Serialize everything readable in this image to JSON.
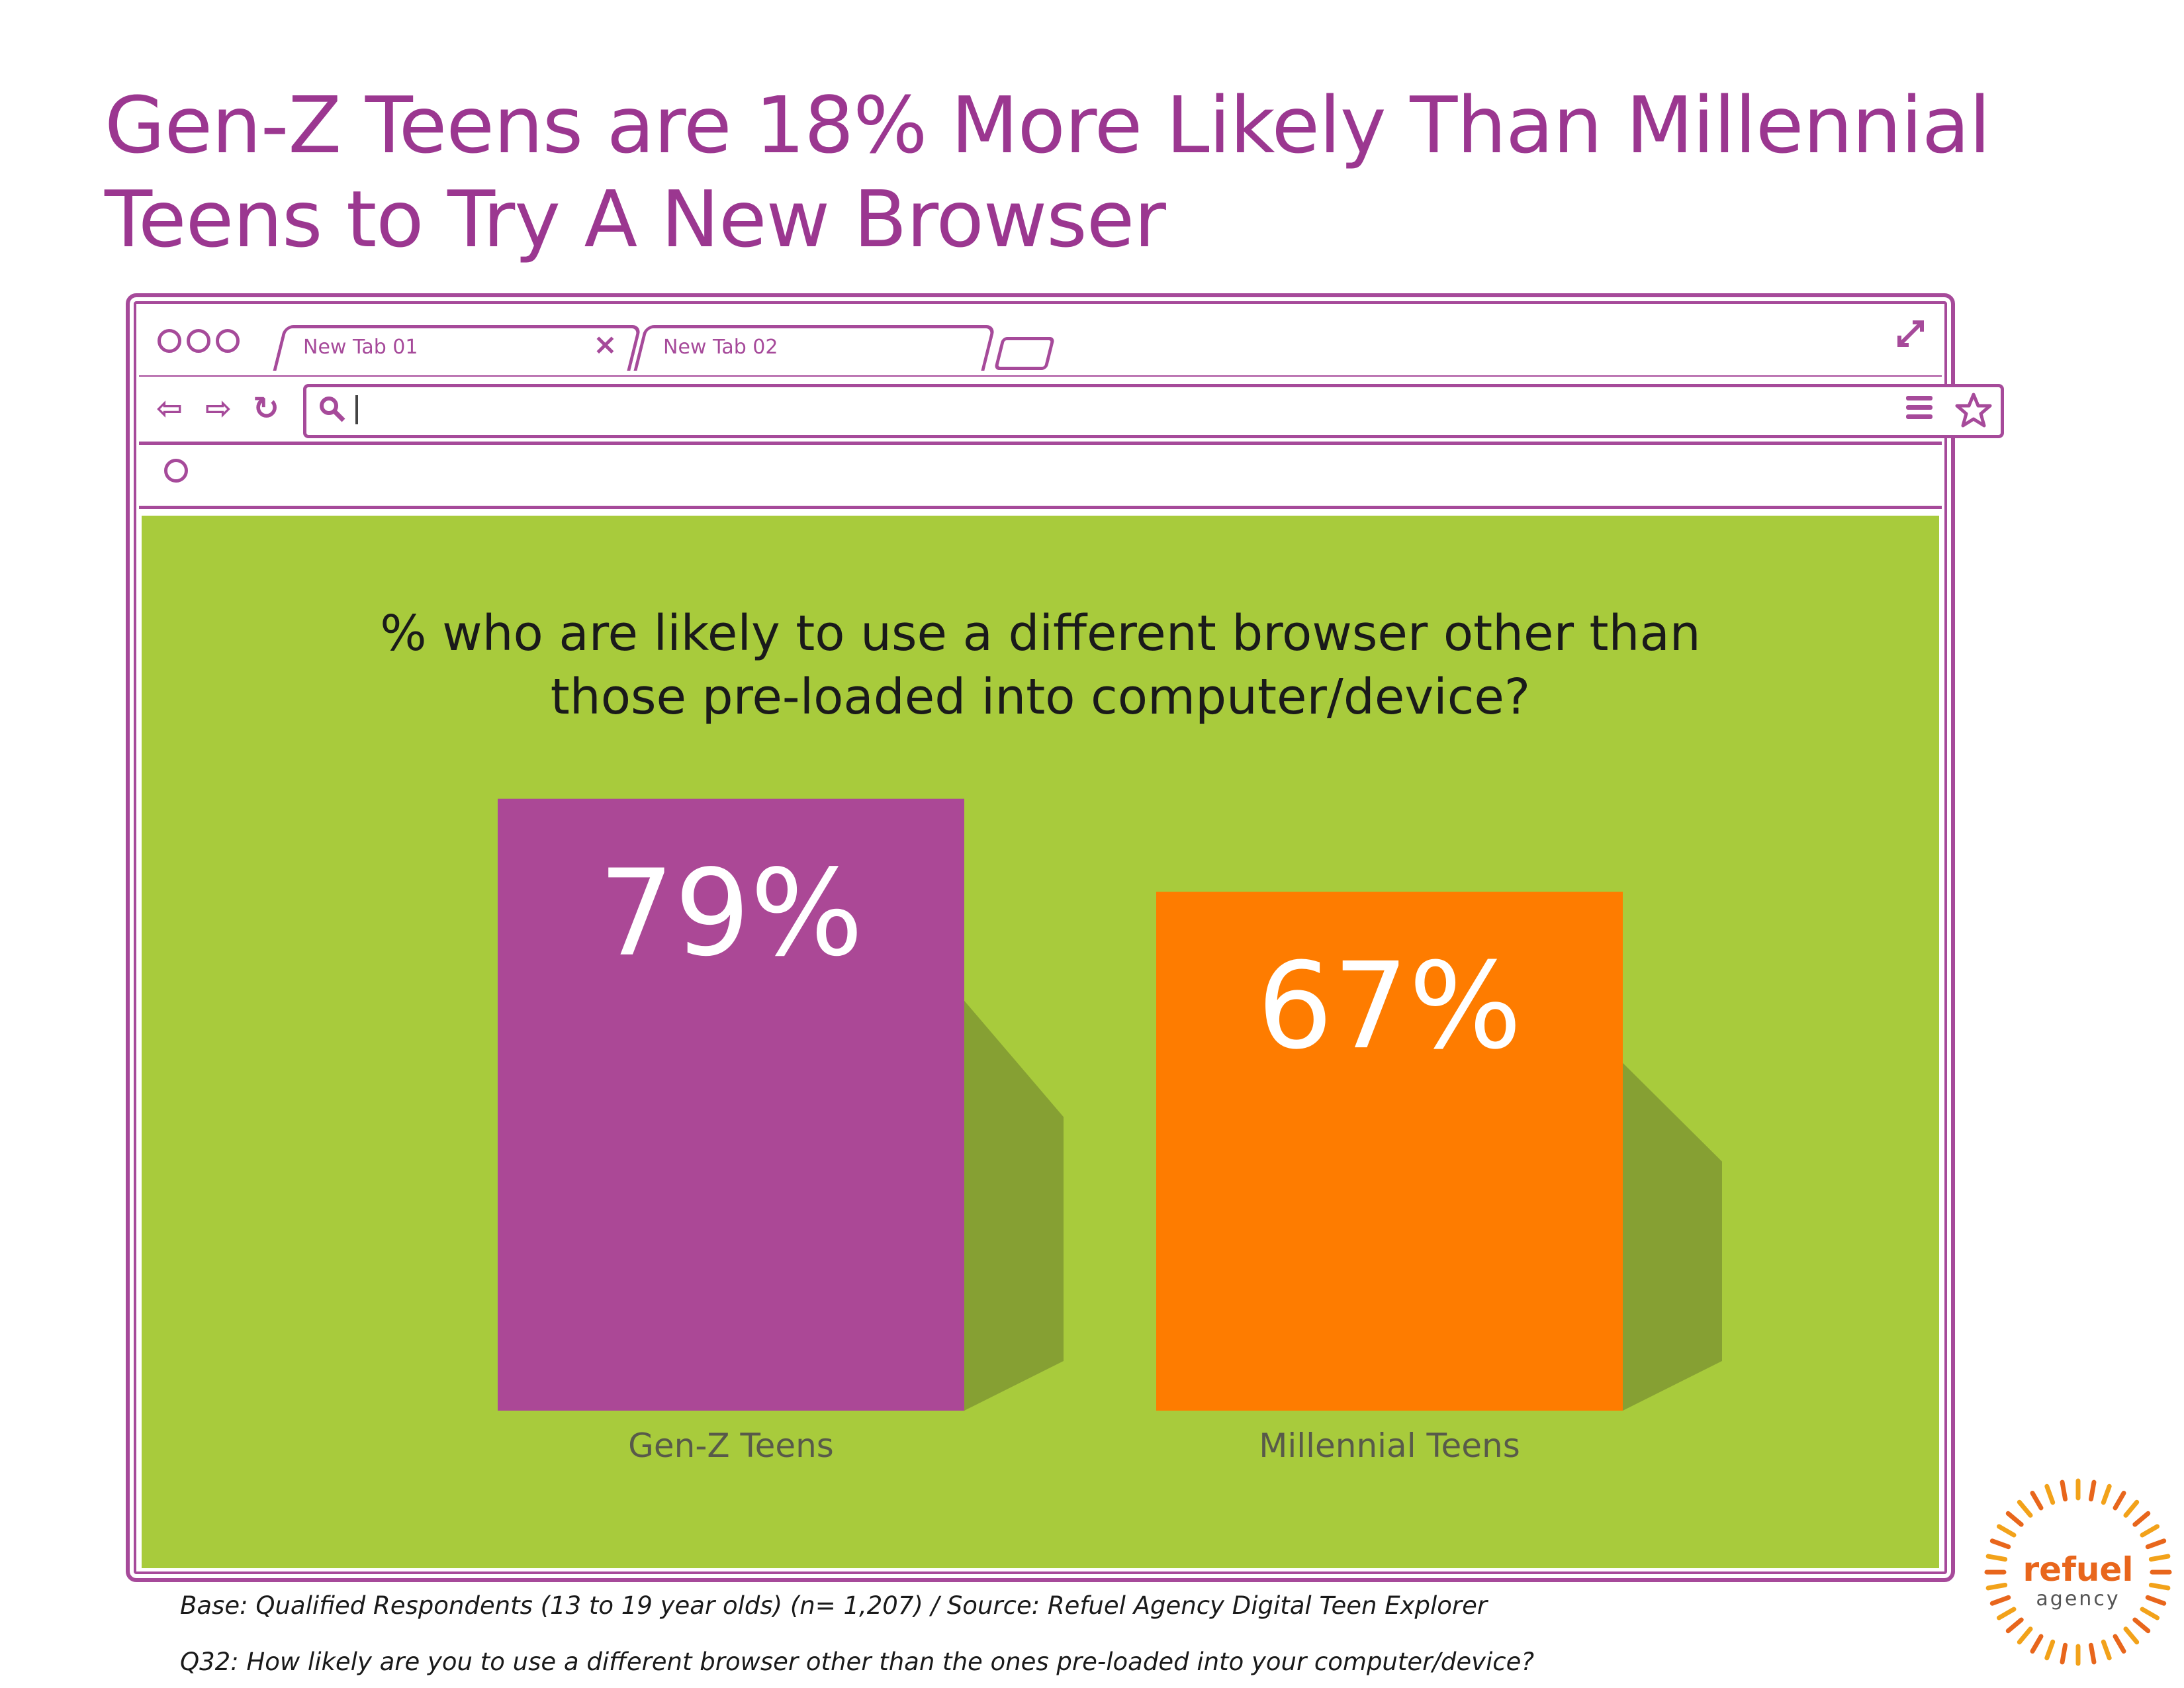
{
  "title": {
    "line1": "Gen-Z Teens are 18% More Likely Than Millennial",
    "line2": "Teens to Try A New Browser"
  },
  "browser": {
    "tabs": [
      {
        "label": "New Tab 01"
      },
      {
        "label": "New Tab 02"
      }
    ],
    "icons": {
      "back": "arrow-left-icon",
      "forward": "arrow-right-icon",
      "reload": "reload-icon",
      "search": "search-icon",
      "star": "star-icon",
      "menu": "menu-icon",
      "expand": "expand-icon",
      "close_tab": "close-icon"
    },
    "address_value": "",
    "frame_color": "#a64a9a",
    "content_bg": "#a8cb3c"
  },
  "chart_data": {
    "type": "bar",
    "title": "% who are likely to use a different browser other than those pre-loaded into computer/device?",
    "title_lines": [
      "% who are likely to use a different browser other than",
      "those pre-loaded into computer/device?"
    ],
    "categories": [
      "Gen-Z Teens",
      "Millennial Teens"
    ],
    "values": [
      79,
      67
    ],
    "value_labels": [
      "79%",
      "67%"
    ],
    "colors": [
      "#ab4896",
      "#fe7c00"
    ],
    "xlabel": "",
    "ylabel": "",
    "grid": false,
    "legend": "none"
  },
  "footnotes": {
    "base": "Base: Qualified Respondents (13 to 19 year olds)  (n= 1,207) / Source: Refuel Agency Digital Teen Explorer",
    "question": "Q32: How likely are you to use a different browser other than the ones pre-loaded into your computer/device?"
  },
  "logo": {
    "word1": "refuel",
    "word2": "agency",
    "color": "#e8661c"
  }
}
